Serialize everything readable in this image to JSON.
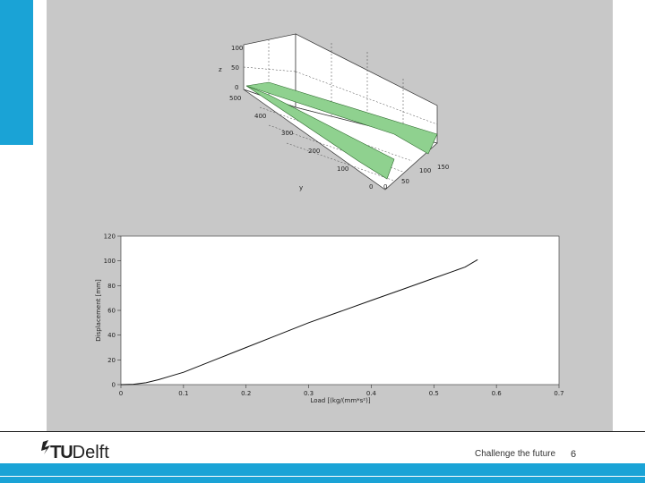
{
  "slide": {
    "slogan": "Challenge the future",
    "page_number": "6",
    "logo_tu": "TU",
    "logo_delft": "Delft"
  },
  "colors": {
    "accent": "#1aa3d6",
    "panel": "#c8c8c8",
    "surface": "#8fd18f"
  },
  "chart_data": [
    {
      "type": "surface3d",
      "x_ticks": [
        "0",
        "50",
        "100",
        "150"
      ],
      "y_ticks": [
        "0",
        "100",
        "200",
        "300",
        "400",
        "500"
      ],
      "z_ticks": [
        "0",
        "50",
        "100"
      ],
      "xlabel": "",
      "ylabel": "y",
      "zlabel": "z"
    },
    {
      "type": "line",
      "xlabel": "Load [(kg/(mm*s²)]",
      "ylabel": "Displacement [mm]",
      "xlim": [
        0,
        0.7
      ],
      "ylim": [
        0,
        120
      ],
      "x_ticks": [
        0,
        0.1,
        0.2,
        0.3,
        0.4,
        0.5,
        0.6,
        0.7
      ],
      "y_ticks": [
        0,
        20,
        40,
        60,
        80,
        100,
        120
      ],
      "series": [
        {
          "x": [
            0,
            0.02,
            0.04,
            0.06,
            0.08,
            0.1,
            0.15,
            0.2,
            0.25,
            0.3,
            0.35,
            0.4,
            0.45,
            0.5,
            0.55,
            0.57
          ],
          "values": [
            0,
            0.3,
            1.5,
            4,
            7,
            10,
            20,
            30,
            40,
            50,
            59,
            68,
            77,
            86,
            95,
            101
          ]
        }
      ]
    }
  ]
}
